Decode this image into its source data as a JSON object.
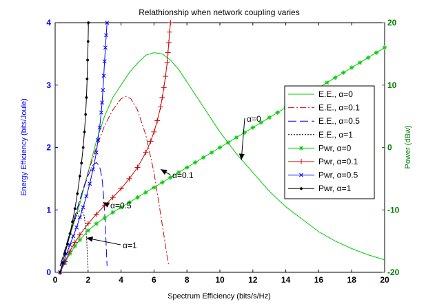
{
  "chart_data": {
    "type": "line",
    "title": "Relathionship when network coupling varies",
    "xlabel": "Spectrum Efficiency (bits/s/Hz)",
    "ylabel_left": "Energy Efficiency (bits/Joule)",
    "ylabel_right": "Power (dBw)",
    "xlim": [
      0,
      20
    ],
    "ylim_left": [
      0,
      4
    ],
    "ylim_right": [
      -20,
      20
    ],
    "x_ticks": [
      0,
      2,
      4,
      6,
      8,
      10,
      12,
      14,
      16,
      18,
      20
    ],
    "y_left_ticks": [
      0,
      1,
      2,
      3,
      4
    ],
    "y_right_ticks": [
      -20,
      -10,
      0,
      10,
      20
    ],
    "grid": false,
    "legend_position": "right",
    "colors": {
      "left_axis": "#0000ff",
      "right_axis": "#008000",
      "green": "#00cc00",
      "red": "#cc0000",
      "blue": "#0000ff",
      "black": "#000000"
    },
    "series": [
      {
        "name": "E.E., α=0",
        "axis": "left",
        "color": "#00cc00",
        "style": "solid",
        "marker": "none",
        "x": [
          0.3,
          0.8,
          1.5,
          2.0,
          2.5,
          3.0,
          3.5,
          4.0,
          4.5,
          5.0,
          5.5,
          6.0,
          6.5,
          7.0,
          7.5,
          8.0,
          8.5,
          9.0,
          9.5,
          10.0,
          11.0,
          12.0,
          13.0,
          14.0,
          15.0,
          16.0,
          17.0,
          18.0,
          19.0,
          20.0
        ],
        "y": [
          0.1,
          0.5,
          1.1,
          1.6,
          2.1,
          2.5,
          2.8,
          3.0,
          3.2,
          3.35,
          3.48,
          3.52,
          3.5,
          3.4,
          3.25,
          3.05,
          2.85,
          2.65,
          2.45,
          2.25,
          1.9,
          1.6,
          1.3,
          1.05,
          0.85,
          0.65,
          0.5,
          0.38,
          0.28,
          0.2
        ]
      },
      {
        "name": "E.E., α=0.1",
        "axis": "left",
        "color": "#cc0000",
        "style": "dashdot",
        "marker": "none",
        "x": [
          0.3,
          1.0,
          1.5,
          2.0,
          2.5,
          3.0,
          3.5,
          4.0,
          4.3,
          4.6,
          5.0,
          5.5,
          6.0,
          6.3,
          6.6,
          6.8,
          6.9
        ],
        "y": [
          0.1,
          0.7,
          1.15,
          1.6,
          2.0,
          2.35,
          2.6,
          2.78,
          2.82,
          2.78,
          2.6,
          2.2,
          1.6,
          1.1,
          0.6,
          0.25,
          0.1
        ]
      },
      {
        "name": "E.E., α=0.5",
        "axis": "left",
        "color": "#0000ff",
        "style": "dashed",
        "marker": "none",
        "x": [
          0.3,
          0.8,
          1.2,
          1.6,
          2.0,
          2.3,
          2.5,
          2.7,
          2.85,
          2.95,
          3.05,
          3.1,
          3.15
        ],
        "y": [
          0.1,
          0.55,
          0.9,
          1.25,
          1.55,
          1.72,
          1.76,
          1.7,
          1.5,
          1.2,
          0.75,
          0.4,
          0.1
        ]
      },
      {
        "name": "E.E., α=1",
        "axis": "left",
        "color": "#000000",
        "style": "dotted",
        "marker": "none",
        "x": [
          0.3,
          0.6,
          0.9,
          1.2,
          1.4,
          1.6,
          1.75,
          1.85,
          1.92,
          1.96,
          2.0
        ],
        "y": [
          0.1,
          0.35,
          0.62,
          0.85,
          0.97,
          1.0,
          0.92,
          0.75,
          0.5,
          0.25,
          0.05
        ]
      },
      {
        "name": "Pwr, α=0",
        "axis": "right",
        "color": "#00cc00",
        "style": "solid",
        "marker": "star",
        "x": [
          0.3,
          0.6,
          0.9,
          1.2,
          1.5,
          2.0,
          2.5,
          3.0,
          3.5,
          4.0,
          4.5,
          5.0,
          5.5,
          6.0,
          6.5,
          7.0,
          7.5,
          8.0,
          8.5,
          9.0,
          9.5,
          10.0,
          10.5,
          11.0,
          11.5,
          12.0,
          12.5,
          13.0,
          13.5,
          14.0,
          14.5,
          15.0,
          15.5,
          16.0,
          16.5,
          17.0,
          17.5,
          18.0,
          18.5,
          19.0,
          19.5,
          20.0
        ],
        "y": [
          -20,
          -18.5,
          -17,
          -15.8,
          -14.8,
          -13.3,
          -12.2,
          -11.3,
          -10.4,
          -9.6,
          -8.8,
          -8.0,
          -7.2,
          -6.4,
          -5.6,
          -4.8,
          -4.0,
          -3.2,
          -2.4,
          -1.6,
          -0.8,
          0.0,
          0.8,
          1.6,
          2.4,
          3.2,
          4.0,
          4.8,
          5.6,
          6.4,
          7.2,
          8.0,
          8.8,
          9.6,
          10.4,
          11.2,
          12.0,
          12.8,
          13.6,
          14.4,
          15.2,
          16.0
        ]
      },
      {
        "name": "Pwr, α=0.1",
        "axis": "right",
        "color": "#cc0000",
        "style": "solid",
        "marker": "plus",
        "x": [
          0.3,
          0.6,
          0.9,
          1.2,
          1.5,
          2.0,
          2.5,
          3.0,
          3.5,
          4.0,
          4.5,
          5.0,
          5.5,
          5.8,
          6.0,
          6.2,
          6.4,
          6.5,
          6.6,
          6.7,
          6.8,
          6.85,
          6.9,
          6.95,
          7.0
        ],
        "y": [
          -20,
          -18.3,
          -16.6,
          -15.2,
          -14.0,
          -12.2,
          -10.7,
          -9.3,
          -8.0,
          -6.6,
          -5.0,
          -3.2,
          -0.8,
          1.0,
          2.5,
          4.3,
          6.5,
          8.0,
          9.6,
          11.4,
          13.6,
          15.2,
          16.8,
          18.5,
          20.0
        ]
      },
      {
        "name": "Pwr, α=0.5",
        "axis": "right",
        "color": "#0000ff",
        "style": "solid",
        "marker": "x",
        "x": [
          0.3,
          0.5,
          0.7,
          0.9,
          1.1,
          1.3,
          1.5,
          1.7,
          1.9,
          2.1,
          2.3,
          2.5,
          2.6,
          2.7,
          2.8,
          2.85,
          2.9,
          2.95,
          3.0,
          3.05,
          3.1,
          3.15
        ],
        "y": [
          -20,
          -18.5,
          -17.0,
          -15.6,
          -14.2,
          -12.8,
          -11.2,
          -9.6,
          -7.8,
          -5.8,
          -3.5,
          -0.8,
          1.2,
          3.2,
          5.6,
          7.2,
          9.2,
          11.5,
          13.8,
          16.0,
          18.0,
          20.0
        ]
      },
      {
        "name": "Pwr, α=1",
        "axis": "right",
        "color": "#000000",
        "style": "solid",
        "marker": "dot",
        "x": [
          0.3,
          0.45,
          0.6,
          0.75,
          0.9,
          1.05,
          1.2,
          1.35,
          1.5,
          1.6,
          1.7,
          1.78,
          1.85,
          1.9,
          1.94,
          1.97,
          2.0,
          2.02
        ],
        "y": [
          -20,
          -18.5,
          -17.0,
          -15.5,
          -13.8,
          -11.9,
          -9.8,
          -7.4,
          -4.6,
          -2.5,
          0.0,
          2.5,
          5.3,
          8.0,
          11.0,
          14.0,
          17.0,
          20.0
        ]
      }
    ],
    "annotations": [
      {
        "text": "α=0",
        "arrow_to": [
          11.3,
          1.8
        ]
      },
      {
        "text": "α=0.1",
        "arrow_to": [
          6.4,
          1.65
        ]
      },
      {
        "text": "α=0.5",
        "arrow_to": [
          2.9,
          1.12
        ]
      },
      {
        "text": "α=1",
        "arrow_to": [
          1.9,
          0.55
        ]
      }
    ]
  }
}
